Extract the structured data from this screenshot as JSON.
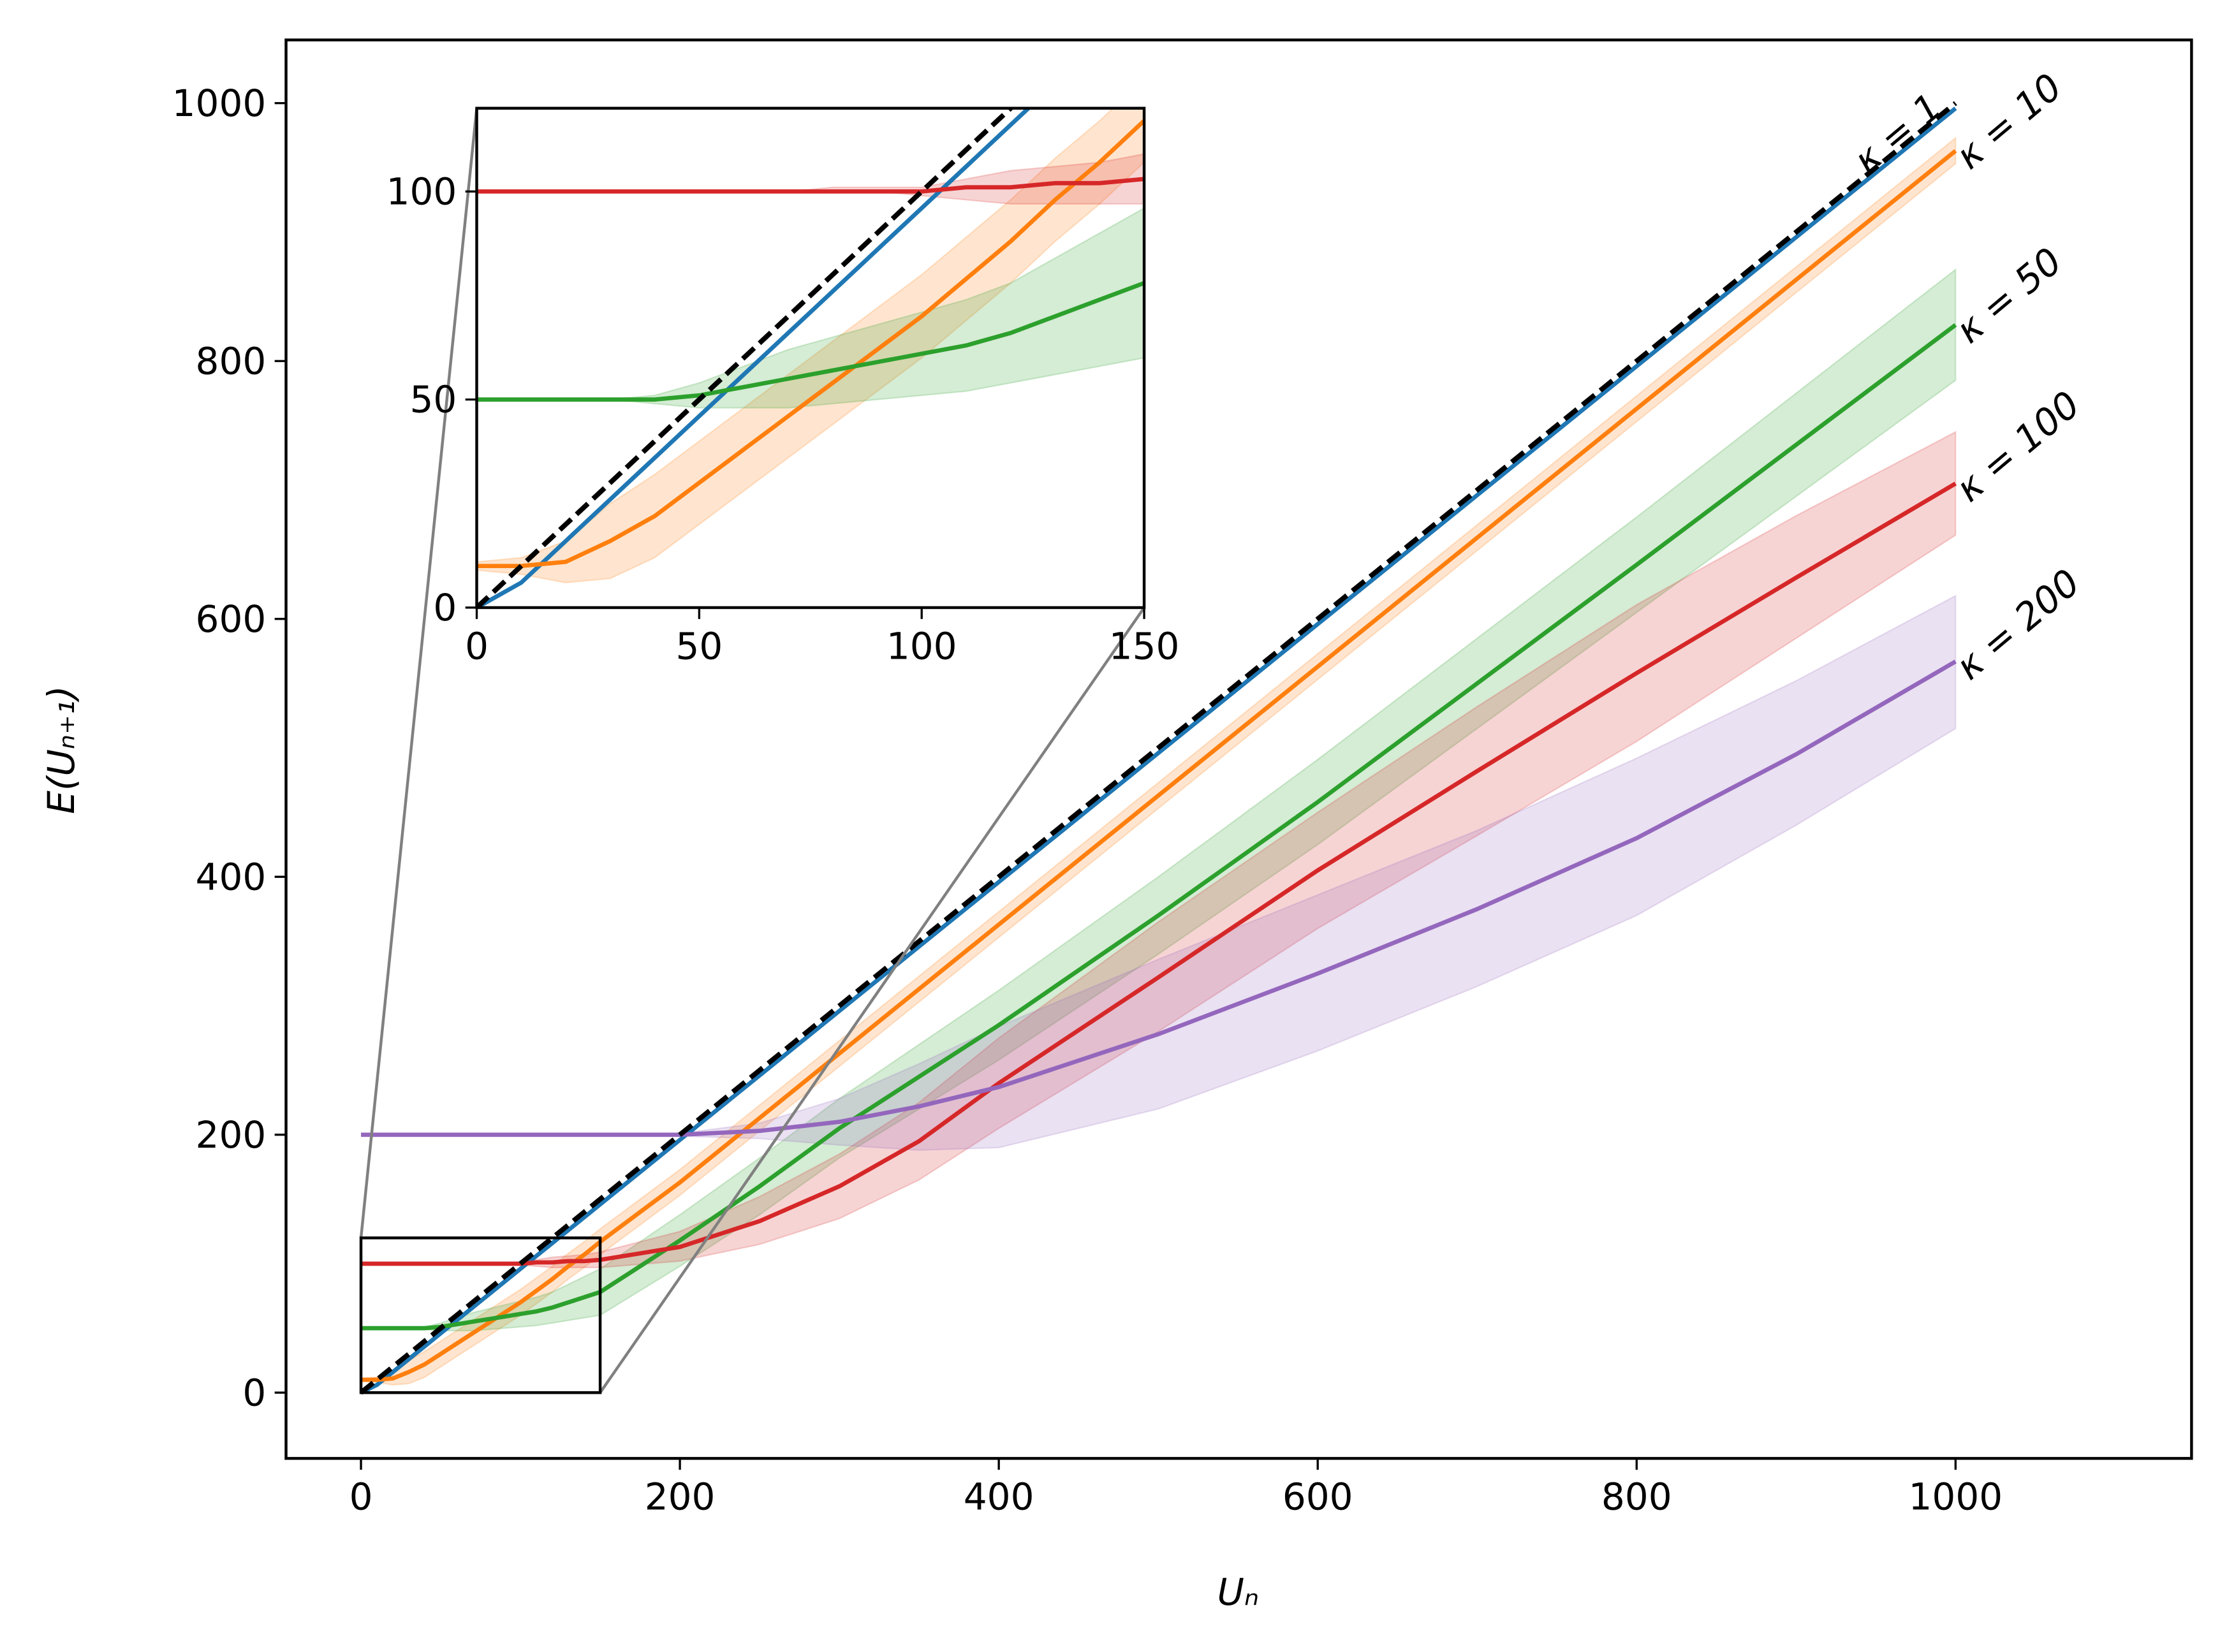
{
  "chart_data": {
    "type": "line",
    "xlabel": "Uₙ",
    "ylabel": "E(Uₙ₊₁)",
    "x": [
      0,
      10,
      20,
      30,
      40,
      50,
      60,
      70,
      80,
      90,
      100,
      110,
      120,
      130,
      140,
      150,
      200,
      250,
      300,
      350,
      400,
      500,
      600,
      700,
      800,
      900,
      1000
    ],
    "xlim": [
      -47,
      1148
    ],
    "ylim": [
      -51,
      1049
    ],
    "xticks": [
      0,
      200,
      400,
      600,
      800,
      1000
    ],
    "yticks": [
      0,
      200,
      400,
      600,
      800,
      1000
    ],
    "inset": {
      "xlim": [
        0,
        150
      ],
      "ylim": [
        0,
        120
      ],
      "xticks": [
        0,
        50,
        100,
        150
      ],
      "yticks": [
        0,
        50,
        100
      ]
    },
    "series": [
      {
        "name": "κ = 1",
        "color": "#1f77b4",
        "values": [
          0,
          6,
          16,
          26,
          36,
          46,
          56,
          66,
          76,
          86,
          96,
          106,
          116,
          126,
          136,
          146,
          196,
          246,
          296,
          346,
          396,
          496,
          596,
          696,
          796,
          896,
          996
        ]
      },
      {
        "name": "κ = 10",
        "color": "#ff7f0e",
        "values": [
          10,
          10,
          11,
          16,
          22,
          30,
          38,
          46,
          54,
          62,
          70,
          79,
          88,
          98,
          107,
          117,
          163,
          213,
          263,
          313,
          363,
          463,
          563,
          663,
          763,
          863,
          963
        ],
        "lower": [
          9,
          8,
          6,
          7,
          12,
          20,
          28,
          36,
          44,
          52,
          60,
          69,
          78,
          88,
          97,
          107,
          153,
          203,
          253,
          303,
          353,
          453,
          553,
          653,
          753,
          853,
          953
        ],
        "upper": [
          11,
          12,
          16,
          25,
          32,
          40,
          48,
          56,
          64,
          72,
          80,
          89,
          98,
          108,
          117,
          127,
          173,
          223,
          273,
          323,
          373,
          473,
          573,
          673,
          773,
          873,
          973
        ]
      },
      {
        "name": "κ = 50",
        "color": "#2ca02c",
        "values": [
          50,
          50,
          50,
          50,
          50,
          51,
          53,
          55,
          57,
          59,
          61,
          63,
          66,
          70,
          74,
          78,
          118,
          160,
          205,
          245,
          285,
          370,
          458,
          550,
          642,
          735,
          828
        ],
        "lower": [
          50,
          50,
          50,
          50,
          49,
          48,
          48,
          48,
          49,
          50,
          51,
          52,
          54,
          56,
          58,
          60,
          98,
          138,
          182,
          220,
          258,
          340,
          425,
          515,
          605,
          695,
          785
        ],
        "upper": [
          50,
          50,
          50,
          50,
          51,
          54,
          58,
          62,
          65,
          68,
          71,
          74,
          78,
          84,
          90,
          96,
          138,
          182,
          228,
          270,
          312,
          400,
          491,
          585,
          679,
          775,
          871
        ]
      },
      {
        "name": "κ = 100",
        "color": "#d62728",
        "values": [
          100,
          100,
          100,
          100,
          100,
          100,
          100,
          100,
          100,
          100,
          100,
          101,
          101,
          102,
          102,
          103,
          113,
          133,
          160,
          195,
          240,
          322,
          405,
          482,
          558,
          632,
          705
        ],
        "lower": [
          100,
          100,
          100,
          100,
          100,
          100,
          100,
          100,
          100,
          100,
          99,
          98,
          97,
          97,
          97,
          97,
          102,
          115,
          135,
          165,
          205,
          280,
          360,
          432,
          505,
          585,
          665
        ],
        "upper": [
          100,
          100,
          100,
          100,
          100,
          100,
          100,
          100,
          101,
          101,
          101,
          103,
          105,
          106,
          107,
          109,
          125,
          152,
          185,
          225,
          275,
          365,
          450,
          532,
          611,
          680,
          745
        ]
      },
      {
        "name": "κ = 200",
        "color": "#9467bd",
        "values": [
          200,
          200,
          200,
          200,
          200,
          200,
          200,
          200,
          200,
          200,
          200,
          200,
          200,
          200,
          200,
          200,
          200,
          203,
          210,
          222,
          237,
          278,
          325,
          375,
          430,
          495,
          567
        ],
        "lower": [
          200,
          200,
          200,
          200,
          200,
          200,
          200,
          200,
          200,
          200,
          200,
          200,
          200,
          200,
          200,
          200,
          199,
          197,
          192,
          188,
          190,
          220,
          265,
          315,
          370,
          440,
          515
        ],
        "upper": [
          200,
          200,
          200,
          200,
          200,
          200,
          200,
          200,
          200,
          200,
          200,
          200,
          200,
          200,
          200,
          200,
          201,
          209,
          228,
          255,
          284,
          336,
          386,
          436,
          492,
          552,
          618
        ]
      },
      {
        "color": "#000000",
        "dash": true,
        "values": [
          0,
          10,
          20,
          30,
          40,
          50,
          60,
          70,
          80,
          90,
          100,
          110,
          120,
          130,
          140,
          150,
          200,
          250,
          300,
          350,
          400,
          500,
          600,
          700,
          800,
          900,
          1000
        ]
      }
    ]
  }
}
